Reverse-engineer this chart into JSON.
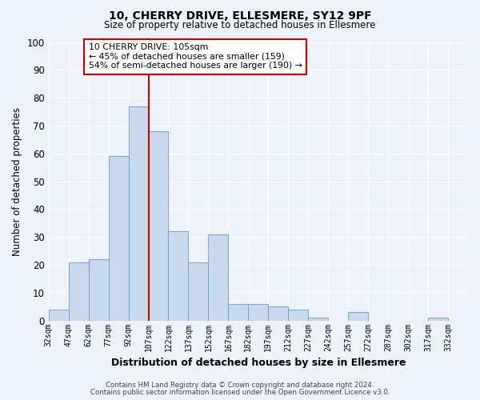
{
  "title": "10, CHERRY DRIVE, ELLESMERE, SY12 9PF",
  "subtitle": "Size of property relative to detached houses in Ellesmere",
  "xlabel": "Distribution of detached houses by size in Ellesmere",
  "ylabel": "Number of detached properties",
  "bar_color": "#c8d8ed",
  "bar_edge_color": "#6699cc",
  "background_color": "#eef2fb",
  "grid_color": "#ffffff",
  "vline_color": "#cc0000",
  "annotation_line1": "10 CHERRY DRIVE: 105sqm",
  "annotation_line2": "← 45% of detached houses are smaller (159)",
  "annotation_line3": "54% of semi-detached houses are larger (190) →",
  "annotation_box_color": "#cc0000",
  "annotation_box_fill": "#ffffff",
  "bin_edges": [
    32,
    47,
    62,
    77,
    92,
    107,
    122,
    137,
    152,
    167,
    182,
    197,
    212,
    227,
    242,
    257,
    272,
    287,
    302,
    317,
    332,
    347
  ],
  "bin_labels": [
    "32sqm",
    "47sqm",
    "62sqm",
    "77sqm",
    "92sqm",
    "107sqm",
    "122sqm",
    "137sqm",
    "152sqm",
    "167sqm",
    "182sqm",
    "197sqm",
    "212sqm",
    "227sqm",
    "242sqm",
    "257sqm",
    "272sqm",
    "287sqm",
    "302sqm",
    "317sqm",
    "332sqm"
  ],
  "counts": [
    4,
    21,
    22,
    59,
    77,
    68,
    32,
    21,
    31,
    6,
    6,
    5,
    4,
    1,
    0,
    3,
    0,
    0,
    0,
    1,
    0
  ],
  "ylim": [
    0,
    100
  ],
  "yticks": [
    0,
    10,
    20,
    30,
    40,
    50,
    60,
    70,
    80,
    90,
    100
  ],
  "footer_line1": "Contains HM Land Registry data © Crown copyright and database right 2024.",
  "footer_line2": "Contains public sector information licensed under the Open Government Licence v3.0."
}
